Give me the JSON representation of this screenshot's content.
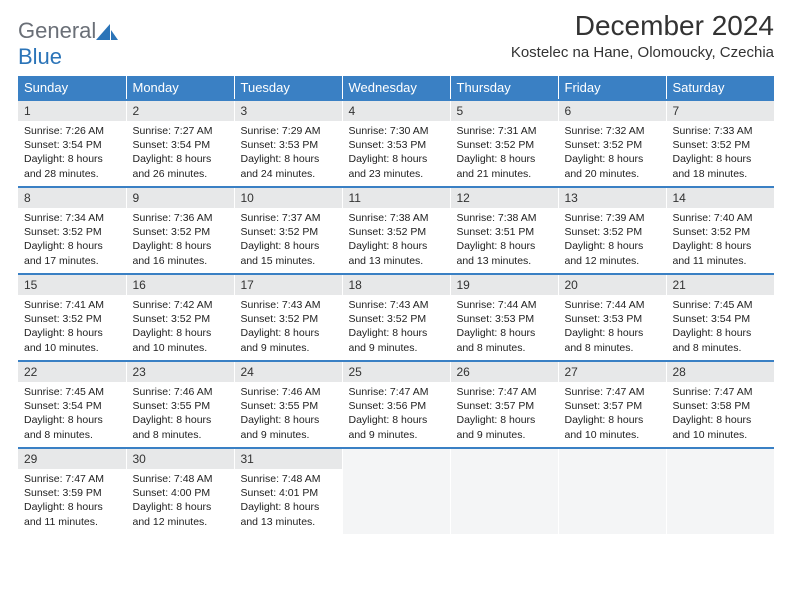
{
  "brand": {
    "general": "General",
    "blue": "Blue"
  },
  "title": "December 2024",
  "location": "Kostelec na Hane, Olomoucky, Czechia",
  "colors": {
    "header_bg": "#3a80c4",
    "header_fg": "#ffffff",
    "daynum_bg": "#e7e8e9",
    "text": "#333333",
    "logo_gray": "#6a6f77",
    "logo_blue": "#2b74b8",
    "empty_bg": "#f4f5f6"
  },
  "weekdays": [
    "Sunday",
    "Monday",
    "Tuesday",
    "Wednesday",
    "Thursday",
    "Friday",
    "Saturday"
  ],
  "weeks": [
    [
      {
        "n": "1",
        "sr": "Sunrise: 7:26 AM",
        "ss": "Sunset: 3:54 PM",
        "d1": "Daylight: 8 hours",
        "d2": "and 28 minutes."
      },
      {
        "n": "2",
        "sr": "Sunrise: 7:27 AM",
        "ss": "Sunset: 3:54 PM",
        "d1": "Daylight: 8 hours",
        "d2": "and 26 minutes."
      },
      {
        "n": "3",
        "sr": "Sunrise: 7:29 AM",
        "ss": "Sunset: 3:53 PM",
        "d1": "Daylight: 8 hours",
        "d2": "and 24 minutes."
      },
      {
        "n": "4",
        "sr": "Sunrise: 7:30 AM",
        "ss": "Sunset: 3:53 PM",
        "d1": "Daylight: 8 hours",
        "d2": "and 23 minutes."
      },
      {
        "n": "5",
        "sr": "Sunrise: 7:31 AM",
        "ss": "Sunset: 3:52 PM",
        "d1": "Daylight: 8 hours",
        "d2": "and 21 minutes."
      },
      {
        "n": "6",
        "sr": "Sunrise: 7:32 AM",
        "ss": "Sunset: 3:52 PM",
        "d1": "Daylight: 8 hours",
        "d2": "and 20 minutes."
      },
      {
        "n": "7",
        "sr": "Sunrise: 7:33 AM",
        "ss": "Sunset: 3:52 PM",
        "d1": "Daylight: 8 hours",
        "d2": "and 18 minutes."
      }
    ],
    [
      {
        "n": "8",
        "sr": "Sunrise: 7:34 AM",
        "ss": "Sunset: 3:52 PM",
        "d1": "Daylight: 8 hours",
        "d2": "and 17 minutes."
      },
      {
        "n": "9",
        "sr": "Sunrise: 7:36 AM",
        "ss": "Sunset: 3:52 PM",
        "d1": "Daylight: 8 hours",
        "d2": "and 16 minutes."
      },
      {
        "n": "10",
        "sr": "Sunrise: 7:37 AM",
        "ss": "Sunset: 3:52 PM",
        "d1": "Daylight: 8 hours",
        "d2": "and 15 minutes."
      },
      {
        "n": "11",
        "sr": "Sunrise: 7:38 AM",
        "ss": "Sunset: 3:52 PM",
        "d1": "Daylight: 8 hours",
        "d2": "and 13 minutes."
      },
      {
        "n": "12",
        "sr": "Sunrise: 7:38 AM",
        "ss": "Sunset: 3:51 PM",
        "d1": "Daylight: 8 hours",
        "d2": "and 13 minutes."
      },
      {
        "n": "13",
        "sr": "Sunrise: 7:39 AM",
        "ss": "Sunset: 3:52 PM",
        "d1": "Daylight: 8 hours",
        "d2": "and 12 minutes."
      },
      {
        "n": "14",
        "sr": "Sunrise: 7:40 AM",
        "ss": "Sunset: 3:52 PM",
        "d1": "Daylight: 8 hours",
        "d2": "and 11 minutes."
      }
    ],
    [
      {
        "n": "15",
        "sr": "Sunrise: 7:41 AM",
        "ss": "Sunset: 3:52 PM",
        "d1": "Daylight: 8 hours",
        "d2": "and 10 minutes."
      },
      {
        "n": "16",
        "sr": "Sunrise: 7:42 AM",
        "ss": "Sunset: 3:52 PM",
        "d1": "Daylight: 8 hours",
        "d2": "and 10 minutes."
      },
      {
        "n": "17",
        "sr": "Sunrise: 7:43 AM",
        "ss": "Sunset: 3:52 PM",
        "d1": "Daylight: 8 hours",
        "d2": "and 9 minutes."
      },
      {
        "n": "18",
        "sr": "Sunrise: 7:43 AM",
        "ss": "Sunset: 3:52 PM",
        "d1": "Daylight: 8 hours",
        "d2": "and 9 minutes."
      },
      {
        "n": "19",
        "sr": "Sunrise: 7:44 AM",
        "ss": "Sunset: 3:53 PM",
        "d1": "Daylight: 8 hours",
        "d2": "and 8 minutes."
      },
      {
        "n": "20",
        "sr": "Sunrise: 7:44 AM",
        "ss": "Sunset: 3:53 PM",
        "d1": "Daylight: 8 hours",
        "d2": "and 8 minutes."
      },
      {
        "n": "21",
        "sr": "Sunrise: 7:45 AM",
        "ss": "Sunset: 3:54 PM",
        "d1": "Daylight: 8 hours",
        "d2": "and 8 minutes."
      }
    ],
    [
      {
        "n": "22",
        "sr": "Sunrise: 7:45 AM",
        "ss": "Sunset: 3:54 PM",
        "d1": "Daylight: 8 hours",
        "d2": "and 8 minutes."
      },
      {
        "n": "23",
        "sr": "Sunrise: 7:46 AM",
        "ss": "Sunset: 3:55 PM",
        "d1": "Daylight: 8 hours",
        "d2": "and 8 minutes."
      },
      {
        "n": "24",
        "sr": "Sunrise: 7:46 AM",
        "ss": "Sunset: 3:55 PM",
        "d1": "Daylight: 8 hours",
        "d2": "and 9 minutes."
      },
      {
        "n": "25",
        "sr": "Sunrise: 7:47 AM",
        "ss": "Sunset: 3:56 PM",
        "d1": "Daylight: 8 hours",
        "d2": "and 9 minutes."
      },
      {
        "n": "26",
        "sr": "Sunrise: 7:47 AM",
        "ss": "Sunset: 3:57 PM",
        "d1": "Daylight: 8 hours",
        "d2": "and 9 minutes."
      },
      {
        "n": "27",
        "sr": "Sunrise: 7:47 AM",
        "ss": "Sunset: 3:57 PM",
        "d1": "Daylight: 8 hours",
        "d2": "and 10 minutes."
      },
      {
        "n": "28",
        "sr": "Sunrise: 7:47 AM",
        "ss": "Sunset: 3:58 PM",
        "d1": "Daylight: 8 hours",
        "d2": "and 10 minutes."
      }
    ],
    [
      {
        "n": "29",
        "sr": "Sunrise: 7:47 AM",
        "ss": "Sunset: 3:59 PM",
        "d1": "Daylight: 8 hours",
        "d2": "and 11 minutes."
      },
      {
        "n": "30",
        "sr": "Sunrise: 7:48 AM",
        "ss": "Sunset: 4:00 PM",
        "d1": "Daylight: 8 hours",
        "d2": "and 12 minutes."
      },
      {
        "n": "31",
        "sr": "Sunrise: 7:48 AM",
        "ss": "Sunset: 4:01 PM",
        "d1": "Daylight: 8 hours",
        "d2": "and 13 minutes."
      },
      null,
      null,
      null,
      null
    ]
  ]
}
